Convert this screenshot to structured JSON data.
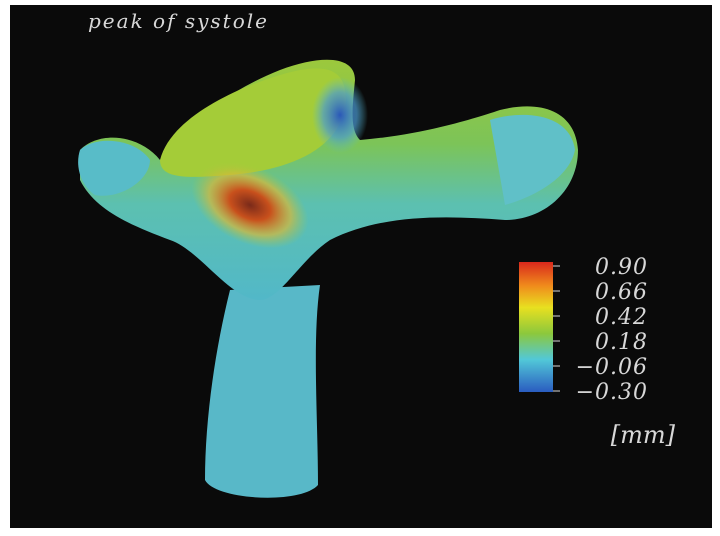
{
  "title": "peak of systole",
  "colorbar": {
    "ticks": [
      {
        "value": 0.9,
        "label": "0.90"
      },
      {
        "value": 0.66,
        "label": "0.66"
      },
      {
        "value": 0.42,
        "label": "0.42"
      },
      {
        "value": 0.18,
        "label": "0.18"
      },
      {
        "value": -0.06,
        "label": "−0.06"
      },
      {
        "value": -0.3,
        "label": "−0.30"
      }
    ],
    "unit": "[mm]"
  }
}
